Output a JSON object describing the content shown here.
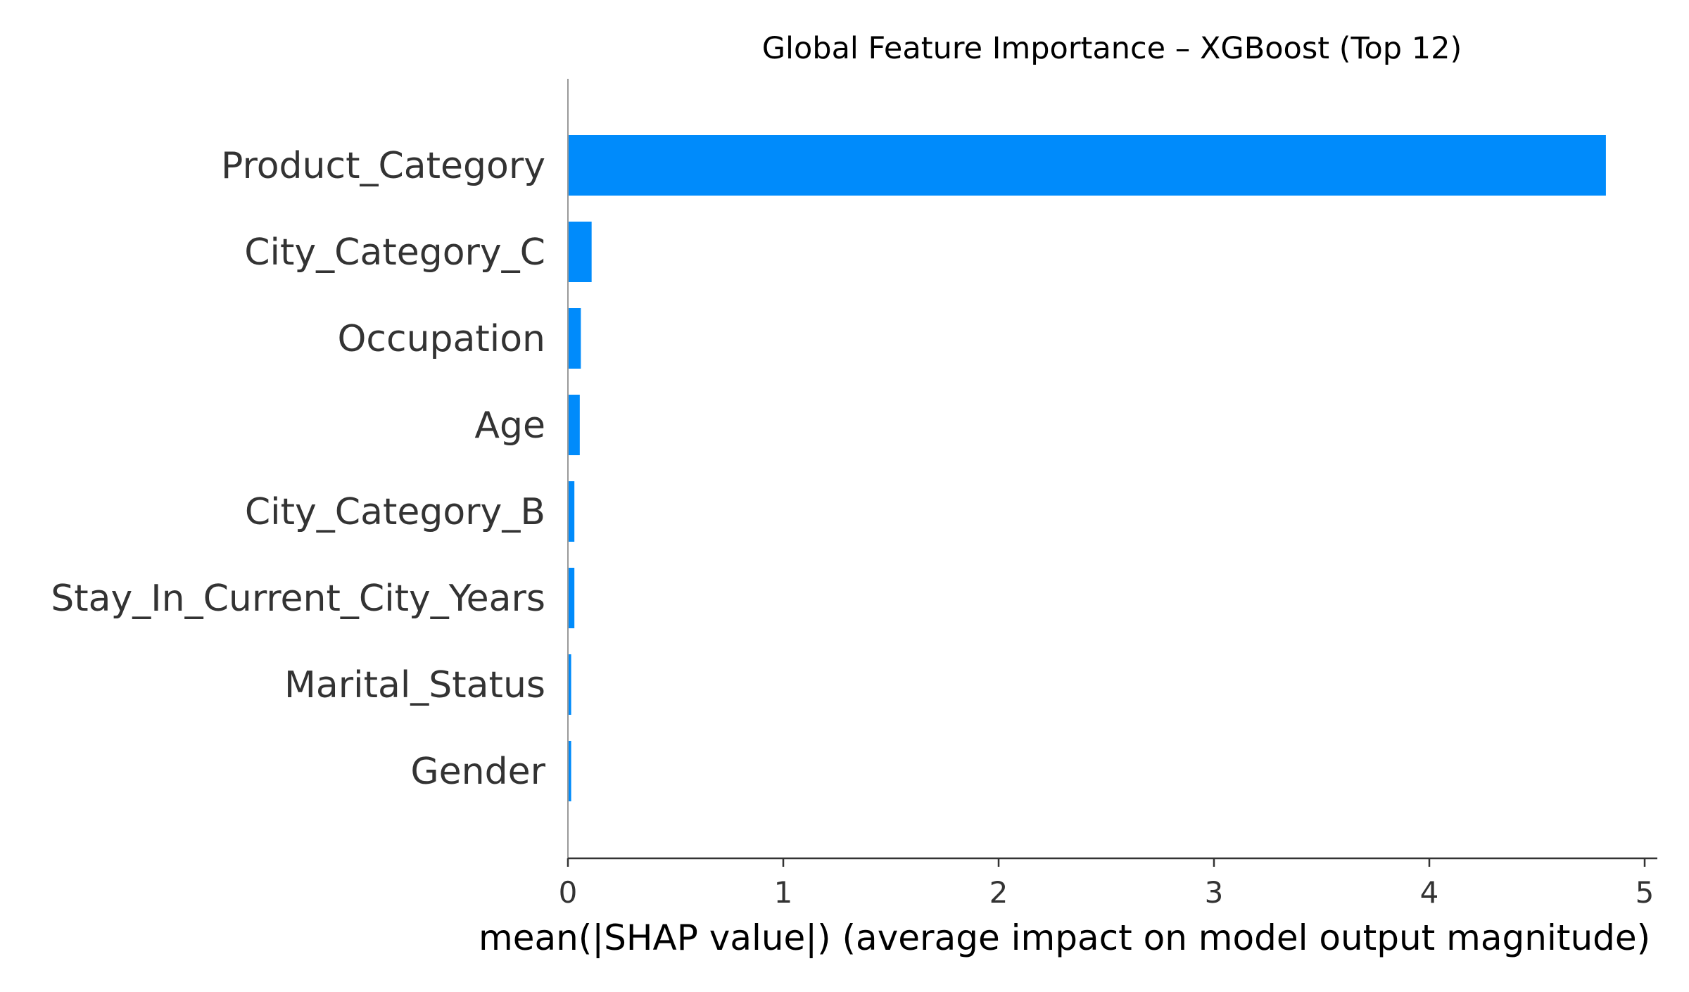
{
  "chart_data": {
    "type": "bar",
    "orientation": "horizontal",
    "title": "Global Feature Importance – XGBoost (Top 12)",
    "xlabel": "mean(|SHAP value|) (average impact on model output magnitude)",
    "ylabel": "",
    "categories": [
      "Product_Category",
      "City_Category_C",
      "Occupation",
      "Age",
      "City_Category_B",
      "Stay_In_Current_City_Years",
      "Marital_Status",
      "Gender"
    ],
    "values": [
      4.82,
      0.11,
      0.06,
      0.055,
      0.03,
      0.03,
      0.015,
      0.015
    ],
    "xlim": [
      0,
      5.07
    ],
    "xticks": [
      0,
      1,
      2,
      3,
      4,
      5
    ],
    "bar_color": "#008bfb",
    "grid": false,
    "legend": "none"
  }
}
